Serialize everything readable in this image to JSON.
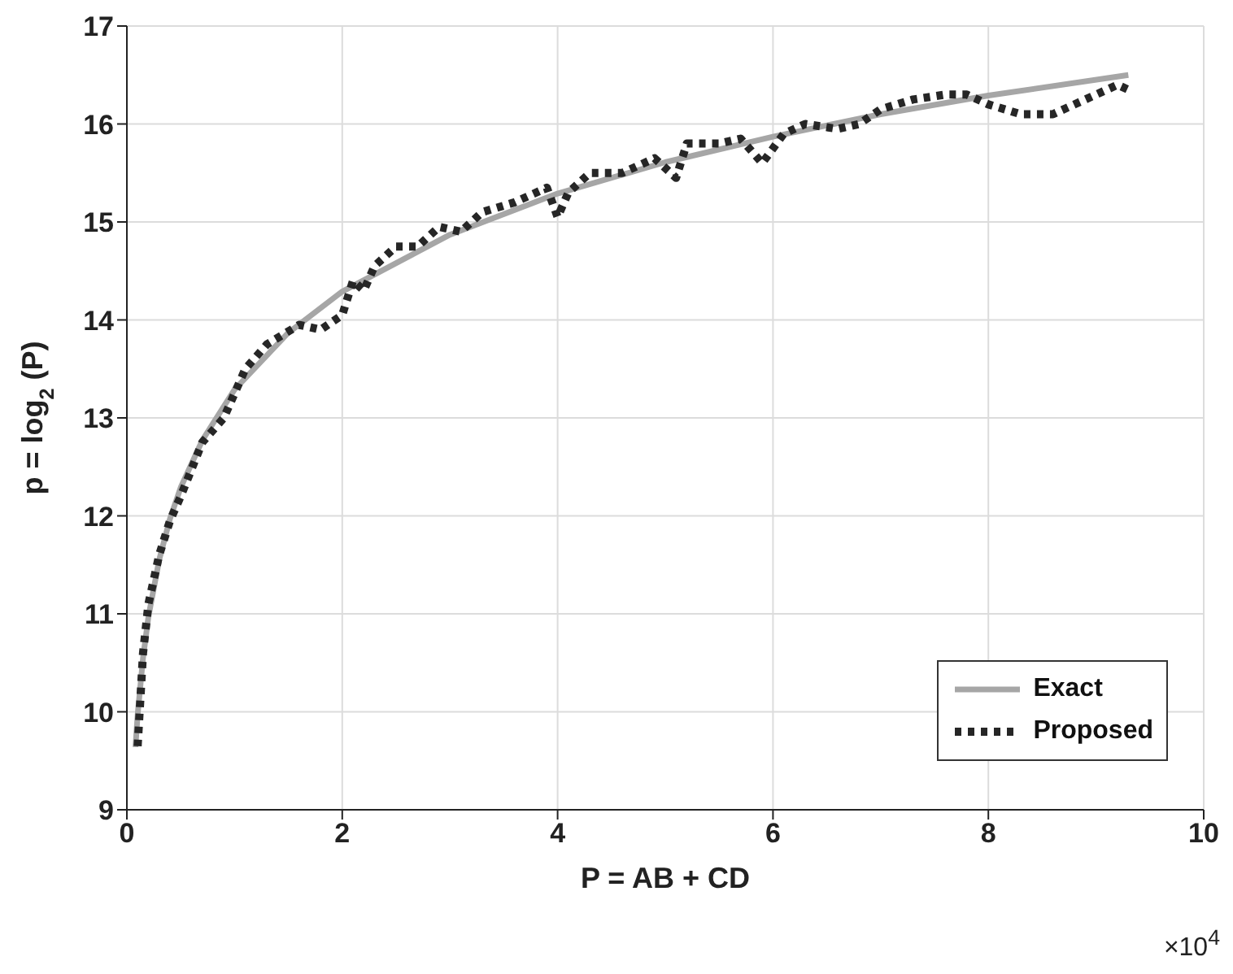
{
  "chart_data": {
    "type": "line",
    "xlabel": "P = AB + CD",
    "ylabel": "p = log$_{2}$(P)",
    "annotations": [
      "×10$^{4}$"
    ],
    "xlim": [
      0,
      10
    ],
    "xticks": [
      0,
      2,
      4,
      6,
      8,
      10
    ],
    "ylim": [
      9,
      17
    ],
    "yticks": [
      9,
      10,
      11,
      12,
      13,
      14,
      15,
      16,
      17
    ],
    "grid": true,
    "legend": "bottom right",
    "series": [
      {
        "name": "Exact",
        "color": "#a6a6a6",
        "line_style": "solid",
        "x": [
          0.08,
          0.1,
          0.15,
          0.2,
          0.3,
          0.4,
          0.5,
          0.7,
          1.0,
          1.5,
          2.0,
          3.0,
          4.0,
          5.0,
          6.0,
          7.0,
          8.0,
          9.3
        ],
        "values": [
          9.64,
          9.97,
          10.55,
          10.97,
          11.55,
          11.97,
          12.29,
          12.77,
          13.29,
          13.87,
          14.29,
          14.87,
          15.29,
          15.61,
          15.87,
          16.1,
          16.29,
          16.5
        ]
      },
      {
        "name": "Proposed",
        "color": "#262626",
        "line_style": "dotted",
        "x": [
          0.1,
          0.15,
          0.2,
          0.3,
          0.4,
          0.5,
          0.7,
          0.9,
          1.1,
          1.3,
          1.6,
          1.8,
          2.0,
          2.1,
          2.2,
          2.3,
          2.5,
          2.7,
          2.9,
          3.1,
          3.3,
          3.6,
          3.9,
          4.0,
          4.1,
          4.3,
          4.6,
          4.9,
          5.1,
          5.2,
          5.5,
          5.7,
          5.9,
          6.1,
          6.3,
          6.6,
          6.8,
          7.0,
          7.3,
          7.6,
          7.8,
          8.0,
          8.3,
          8.6,
          8.9,
          9.2,
          9.3
        ],
        "values": [
          9.65,
          10.6,
          11.1,
          11.6,
          11.95,
          12.2,
          12.75,
          13.0,
          13.5,
          13.75,
          13.95,
          13.9,
          14.05,
          14.4,
          14.3,
          14.55,
          14.75,
          14.75,
          14.95,
          14.9,
          15.1,
          15.2,
          15.35,
          15.05,
          15.3,
          15.5,
          15.5,
          15.65,
          15.45,
          15.8,
          15.8,
          15.85,
          15.6,
          15.9,
          16.0,
          15.95,
          16.0,
          16.15,
          16.25,
          16.3,
          16.3,
          16.2,
          16.1,
          16.1,
          16.25,
          16.4,
          16.35
        ]
      }
    ]
  }
}
